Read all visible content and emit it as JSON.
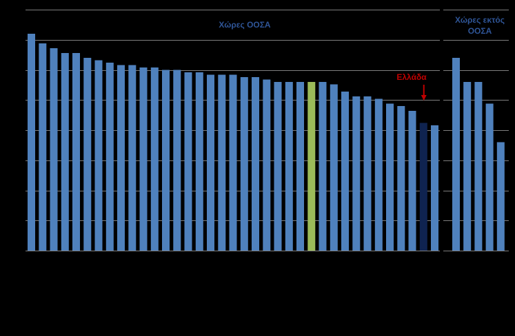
{
  "chart_data": {
    "type": "bar",
    "groups": [
      {
        "name": "Χώρες ΟΟΣΑ",
        "values": [
          0.9,
          0.86,
          0.84,
          0.82,
          0.82,
          0.8,
          0.79,
          0.78,
          0.77,
          0.77,
          0.76,
          0.76,
          0.75,
          0.75,
          0.74,
          0.74,
          0.73,
          0.73,
          0.73,
          0.72,
          0.72,
          0.71,
          0.7,
          0.7,
          0.7,
          0.7,
          0.7,
          0.69,
          0.66,
          0.64,
          0.64,
          0.63,
          0.61,
          0.6,
          0.58,
          0.53,
          0.52
        ],
        "highlight": {
          "average_index": 25,
          "greece_index": 35
        }
      },
      {
        "name": "Χώρες εκτός ΟΟΣΑ",
        "values": [
          0.8,
          0.7,
          0.7,
          0.61,
          0.45
        ]
      }
    ],
    "annotation": "Ελλάδα",
    "ylim": [
      0,
      1
    ],
    "gridlines": [
      0.125,
      0.25,
      0.375,
      0.5,
      0.625,
      0.75,
      0.875,
      1.0
    ],
    "grid": true,
    "colors": {
      "bar": "#4f81bd",
      "average": "#9bbb59",
      "greece": "#0f2350",
      "annotation": "#c00000",
      "gridline": "#7f7f7f",
      "group_label": "#2f5597"
    }
  }
}
